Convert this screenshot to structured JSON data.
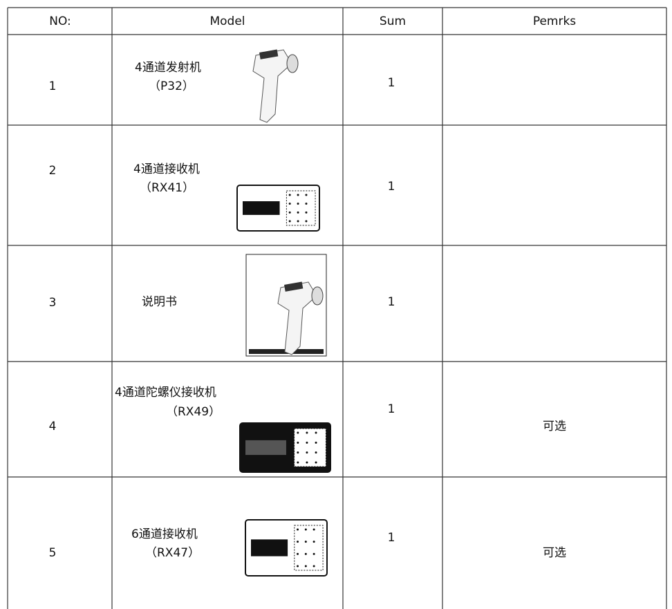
{
  "table": {
    "header": [
      "NO:",
      "Model",
      "Sum",
      "Pemrks"
    ],
    "rows": [
      {
        "no": "1",
        "model": "4通道发射机",
        "code": "（P32）",
        "sum": "1"
      },
      {
        "no": "2",
        "model": "4通道接收机",
        "code": "（RX41）",
        "sum": "1"
      },
      {
        "no": "3",
        "model": "说明书",
        "sum": "1"
      },
      {
        "no": "4",
        "model": "4通道陀螺仪接收机",
        "code": "（RX49）",
        "sum": "1",
        "remarks": "可选"
      },
      {
        "no": "5",
        "model": "6通道接收机",
        "code": "（RX47）",
        "sum": "1",
        "remarks": "可选"
      }
    ]
  }
}
